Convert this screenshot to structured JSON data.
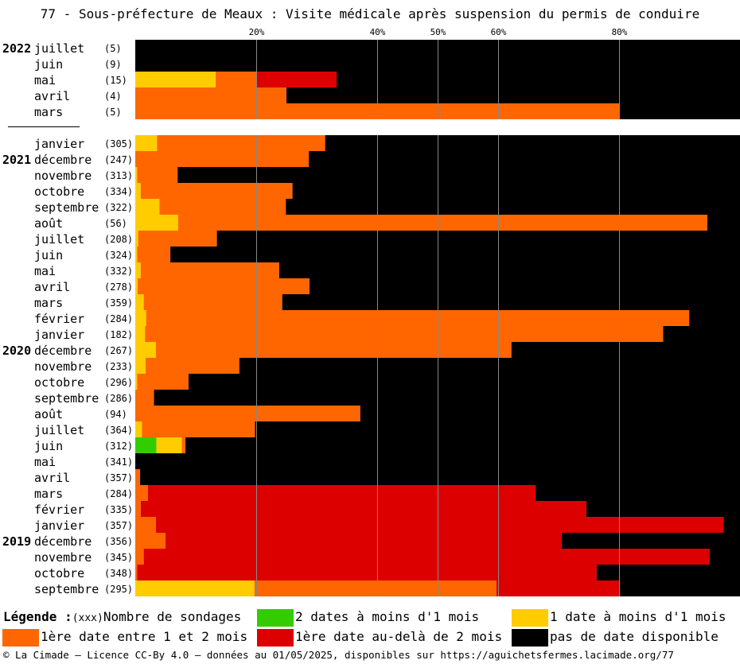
{
  "title": "77 - Sous-préfecture de Meaux : Visite médicale après suspension du permis de conduire",
  "legend": {
    "title": "Légende :",
    "count_marker": "(xxx)",
    "count_label": "Nombre de sondages",
    "items": [
      {
        "key": "green",
        "label": "2 dates à moins d'1 mois",
        "color": "#33cc00"
      },
      {
        "key": "yellow",
        "label": "1 date à moins d'1 mois",
        "color": "#ffcc00"
      },
      {
        "key": "orange",
        "label": "1ère date entre 1 et 2 mois",
        "color": "#ff6600"
      },
      {
        "key": "red",
        "label": "1ère date au-delà de 2 mois",
        "color": "#dd0000"
      },
      {
        "key": "black",
        "label": "pas de date disponible",
        "color": "#000000"
      }
    ]
  },
  "footer": "© La Cimade — Licence CC-By 4.0 — données au 01/05/2025, disponibles sur https://aguichetsfermes.lacimade.org/77",
  "chart_data": {
    "type": "bar",
    "orientation": "horizontal-stacked-100",
    "x_ticks": [
      "20%",
      "40%",
      "50%",
      "60%",
      "80%"
    ],
    "tick_values": [
      20,
      40,
      50,
      60,
      80
    ],
    "xlim": [
      0,
      100
    ],
    "series_order": [
      "green",
      "yellow",
      "orange",
      "red",
      "black"
    ],
    "groups": [
      {
        "rows": [
          {
            "year": "2022",
            "month": "juillet",
            "count": "(5)",
            "green": 0,
            "yellow": 0,
            "orange": 0,
            "red": 0,
            "black": 100
          },
          {
            "year": "",
            "month": "juin",
            "count": "(9)",
            "green": 0,
            "yellow": 0,
            "orange": 0,
            "red": 0,
            "black": 100
          },
          {
            "year": "",
            "month": "mai",
            "count": "(15)",
            "green": 0,
            "yellow": 13.3,
            "orange": 6.7,
            "red": 13.3,
            "black": 66.7
          },
          {
            "year": "",
            "month": "avril",
            "count": "(4)",
            "green": 0,
            "yellow": 0,
            "orange": 25,
            "red": 0,
            "black": 75
          },
          {
            "year": "",
            "month": "mars",
            "count": "(5)",
            "green": 0,
            "yellow": 0,
            "orange": 80,
            "red": 0,
            "black": 20
          }
        ]
      },
      {
        "rows": [
          {
            "year": "",
            "month": "janvier",
            "count": "(305)",
            "green": 0,
            "yellow": 3.6,
            "orange": 27.8,
            "red": 0,
            "black": 68.6
          },
          {
            "year": "2021",
            "month": "décembre",
            "count": "(247)",
            "green": 0,
            "yellow": 0,
            "orange": 28.7,
            "red": 0,
            "black": 71.3
          },
          {
            "year": "",
            "month": "novembre",
            "count": "(313)",
            "green": 0,
            "yellow": 0.3,
            "orange": 6.7,
            "red": 0,
            "black": 93.0
          },
          {
            "year": "",
            "month": "octobre",
            "count": "(334)",
            "green": 0,
            "yellow": 0.9,
            "orange": 25.1,
            "red": 0,
            "black": 74.0
          },
          {
            "year": "",
            "month": "septembre",
            "count": "(322)",
            "green": 0,
            "yellow": 4.0,
            "orange": 20.9,
            "red": 0,
            "black": 75.1
          },
          {
            "year": "",
            "month": "août",
            "count": "(56)",
            "green": 0,
            "yellow": 7.1,
            "orange": 87.5,
            "red": 0,
            "black": 5.4
          },
          {
            "year": "",
            "month": "juillet",
            "count": "(208)",
            "green": 0,
            "yellow": 0.5,
            "orange": 13.0,
            "red": 0,
            "black": 86.5
          },
          {
            "year": "",
            "month": "juin",
            "count": "(324)",
            "green": 0,
            "yellow": 0.3,
            "orange": 5.5,
            "red": 0,
            "black": 94.2
          },
          {
            "year": "",
            "month": "mai",
            "count": "(332)",
            "green": 0,
            "yellow": 0.9,
            "orange": 22.9,
            "red": 0,
            "black": 76.2
          },
          {
            "year": "",
            "month": "avril",
            "count": "(278)",
            "green": 0,
            "yellow": 0.4,
            "orange": 28.4,
            "red": 0,
            "black": 71.2
          },
          {
            "year": "",
            "month": "mars",
            "count": "(359)",
            "green": 0,
            "yellow": 1.4,
            "orange": 22.9,
            "red": 0,
            "black": 75.7
          },
          {
            "year": "",
            "month": "février",
            "count": "(284)",
            "green": 0,
            "yellow": 1.8,
            "orange": 89.8,
            "red": 0,
            "black": 8.4
          },
          {
            "year": "",
            "month": "janvier",
            "count": "(182)",
            "green": 0,
            "yellow": 1.6,
            "orange": 85.7,
            "red": 0,
            "black": 12.7
          },
          {
            "year": "2020",
            "month": "décembre",
            "count": "(267)",
            "green": 0,
            "yellow": 3.4,
            "orange": 58.8,
            "red": 0,
            "black": 37.8
          },
          {
            "year": "",
            "month": "novembre",
            "count": "(233)",
            "green": 0,
            "yellow": 1.7,
            "orange": 15.5,
            "red": 0,
            "black": 82.8
          },
          {
            "year": "",
            "month": "octobre",
            "count": "(296)",
            "green": 0,
            "yellow": 0.3,
            "orange": 8.5,
            "red": 0,
            "black": 91.2
          },
          {
            "year": "",
            "month": "septembre",
            "count": "(286)",
            "green": 0,
            "yellow": 0,
            "orange": 3.1,
            "red": 0,
            "black": 96.9
          },
          {
            "year": "",
            "month": "août",
            "count": "(94)",
            "green": 0,
            "yellow": 0,
            "orange": 37.2,
            "red": 0,
            "black": 62.8
          },
          {
            "year": "",
            "month": "juillet",
            "count": "(364)",
            "green": 0,
            "yellow": 1.1,
            "orange": 18.7,
            "red": 0,
            "black": 80.2
          },
          {
            "year": "",
            "month": "juin",
            "count": "(312)",
            "green": 3.5,
            "yellow": 4.2,
            "orange": 0.6,
            "red": 0,
            "black": 91.7
          },
          {
            "year": "",
            "month": "mai",
            "count": "(341)",
            "green": 0,
            "yellow": 0,
            "orange": 0,
            "red": 0,
            "black": 100
          },
          {
            "year": "",
            "month": "avril",
            "count": "(357)",
            "green": 0,
            "yellow": 0,
            "orange": 0.8,
            "red": 0,
            "black": 99.2
          },
          {
            "year": "",
            "month": "mars",
            "count": "(284)",
            "green": 0,
            "yellow": 0,
            "orange": 2.1,
            "red": 64.1,
            "black": 33.8
          },
          {
            "year": "",
            "month": "février",
            "count": "(335)",
            "green": 0,
            "yellow": 0,
            "orange": 0.9,
            "red": 73.7,
            "black": 25.4
          },
          {
            "year": "",
            "month": "janvier",
            "count": "(357)",
            "green": 0,
            "yellow": 0,
            "orange": 3.4,
            "red": 93.9,
            "black": 2.7
          },
          {
            "year": "2019",
            "month": "décembre",
            "count": "(356)",
            "green": 0,
            "yellow": 0,
            "orange": 5.0,
            "red": 65.5,
            "black": 29.5
          },
          {
            "year": "",
            "month": "novembre",
            "count": "(345)",
            "green": 0,
            "yellow": 0,
            "orange": 1.4,
            "red": 93.6,
            "black": 5.0
          },
          {
            "year": "",
            "month": "octobre",
            "count": "(348)",
            "green": 0,
            "yellow": 0,
            "orange": 0.3,
            "red": 76.0,
            "black": 23.7
          },
          {
            "year": "",
            "month": "septembre",
            "count": "(295)",
            "green": 0,
            "yellow": 19.7,
            "orange": 40.0,
            "red": 20.3,
            "black": 20.0
          }
        ]
      }
    ]
  }
}
